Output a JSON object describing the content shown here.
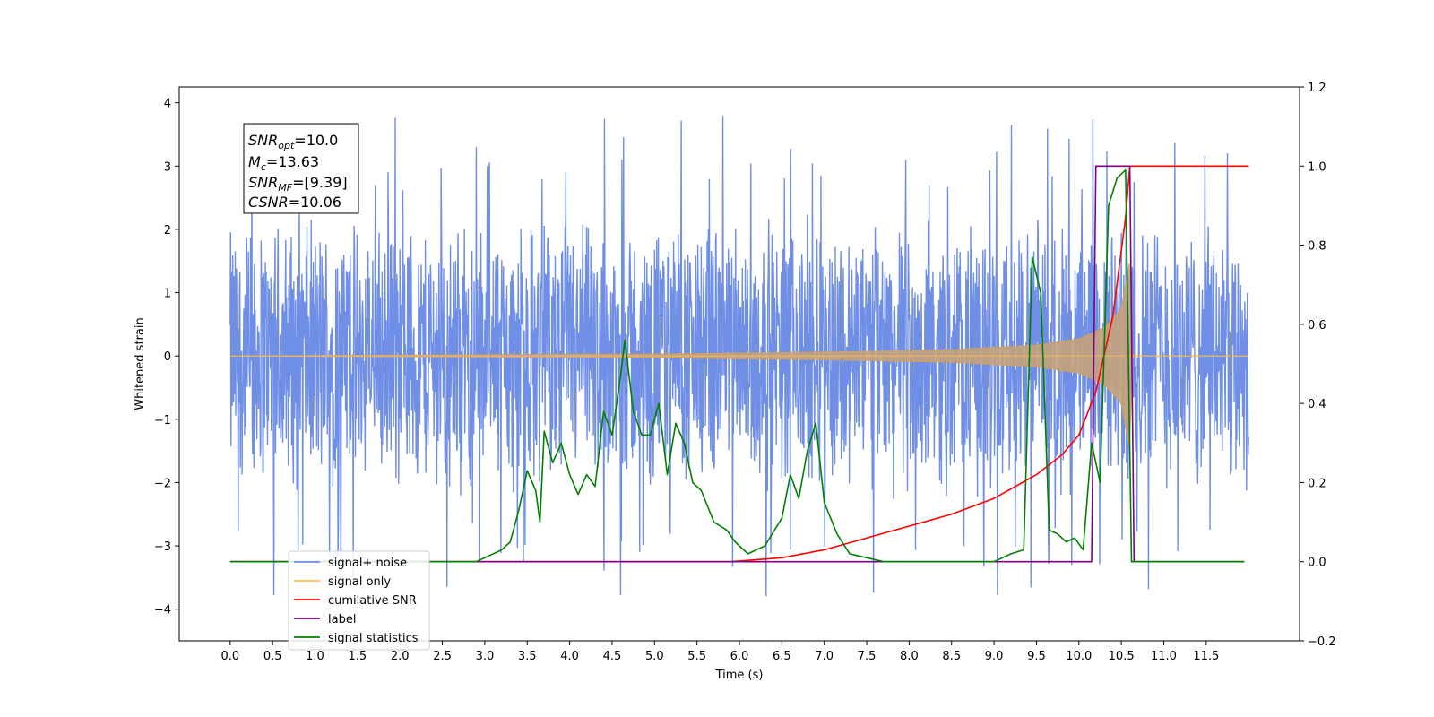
{
  "chart_data": {
    "type": "line",
    "xlabel": "Time (s)",
    "ylabel_left": "Whitened strain",
    "ylabel_right": "",
    "xlim": [
      -0.6,
      12.6
    ],
    "ylim_left": [
      -4.5,
      4.25
    ],
    "ylim_right": [
      -0.2,
      1.2
    ],
    "x_ticks": [
      0.0,
      0.5,
      1.0,
      1.5,
      2.0,
      2.5,
      3.0,
      3.5,
      4.0,
      4.5,
      5.0,
      5.5,
      6.0,
      6.5,
      7.0,
      7.5,
      8.0,
      8.5,
      9.0,
      9.5,
      10.0,
      10.5,
      11.0,
      11.5
    ],
    "x_tick_labels": [
      "0.0",
      "0.5",
      "1.0",
      "1.5",
      "2.0",
      "2.5",
      "3.0",
      "3.5",
      "4.0",
      "4.5",
      "5.0",
      "5.5",
      "6.0",
      "6.5",
      "7.0",
      "7.5",
      "8.0",
      "8.5",
      "9.0",
      "9.5",
      "10.0",
      "10.5",
      "11.0",
      "11.5"
    ],
    "y_left_ticks": [
      4,
      3,
      2,
      1,
      0,
      -1,
      -2,
      -3,
      -4
    ],
    "y_left_tick_labels": [
      "4",
      "3",
      "2",
      "1",
      "0",
      "−1",
      "−2",
      "−3",
      "−4"
    ],
    "y_right_ticks": [
      1.2,
      1.0,
      0.8,
      0.6,
      0.4,
      0.2,
      0.0,
      -0.2
    ],
    "y_right_tick_labels": [
      "1.2",
      "1.0",
      "0.8",
      "0.6",
      "0.4",
      "0.2",
      "0.0",
      "−0.2"
    ],
    "series": [
      {
        "name": "signal+ noise",
        "color": "#6f8ee6",
        "axis": "left",
        "style": "dense noisy trace, approx. uniform band between -2.3 and 2.3 with spikes to about 3.9 and -3.8",
        "x_range": [
          0.0,
          12.0
        ],
        "band": [
          -2.3,
          2.3
        ]
      },
      {
        "name": "signal only",
        "color": "#ffa500",
        "axis": "left",
        "style": "chirp with growing amplitude, zero after merger",
        "x_range": [
          0.0,
          12.0
        ],
        "envelope_points": [
          [
            0.0,
            0.0
          ],
          [
            5.0,
            0.03
          ],
          [
            7.0,
            0.06
          ],
          [
            8.5,
            0.1
          ],
          [
            9.5,
            0.17
          ],
          [
            10.0,
            0.27
          ],
          [
            10.3,
            0.45
          ],
          [
            10.5,
            0.75
          ],
          [
            10.6,
            1.5
          ],
          [
            10.63,
            0.0
          ],
          [
            12.0,
            0.0
          ]
        ]
      },
      {
        "name": "cumilative SNR",
        "color": "#ff0000",
        "axis": "right",
        "points": [
          [
            0.0,
            0.0
          ],
          [
            5.9,
            0.0
          ],
          [
            6.5,
            0.01
          ],
          [
            7.0,
            0.03
          ],
          [
            7.5,
            0.06
          ],
          [
            8.0,
            0.09
          ],
          [
            8.5,
            0.12
          ],
          [
            9.0,
            0.16
          ],
          [
            9.5,
            0.22
          ],
          [
            9.8,
            0.27
          ],
          [
            10.0,
            0.32
          ],
          [
            10.2,
            0.43
          ],
          [
            10.4,
            0.62
          ],
          [
            10.55,
            0.87
          ],
          [
            10.6,
            1.0
          ],
          [
            12.0,
            1.0
          ]
        ]
      },
      {
        "name": "label",
        "color": "#800080",
        "axis": "right",
        "points": [
          [
            0.0,
            0.0
          ],
          [
            10.15,
            0.0
          ],
          [
            10.2,
            1.0
          ],
          [
            10.6,
            1.0
          ],
          [
            10.65,
            0.0
          ],
          [
            11.95,
            0.0
          ]
        ]
      },
      {
        "name": "signal statistics",
        "color": "#008000",
        "axis": "right",
        "points": [
          [
            0.0,
            0.0
          ],
          [
            2.9,
            0.0
          ],
          [
            3.0,
            0.01
          ],
          [
            3.2,
            0.03
          ],
          [
            3.3,
            0.05
          ],
          [
            3.4,
            0.13
          ],
          [
            3.5,
            0.23
          ],
          [
            3.6,
            0.18
          ],
          [
            3.65,
            0.1
          ],
          [
            3.7,
            0.33
          ],
          [
            3.8,
            0.25
          ],
          [
            3.9,
            0.3
          ],
          [
            4.0,
            0.22
          ],
          [
            4.1,
            0.17
          ],
          [
            4.2,
            0.22
          ],
          [
            4.3,
            0.19
          ],
          [
            4.4,
            0.38
          ],
          [
            4.5,
            0.32
          ],
          [
            4.6,
            0.47
          ],
          [
            4.65,
            0.56
          ],
          [
            4.75,
            0.38
          ],
          [
            4.85,
            0.32
          ],
          [
            4.95,
            0.32
          ],
          [
            5.05,
            0.4
          ],
          [
            5.15,
            0.22
          ],
          [
            5.25,
            0.35
          ],
          [
            5.35,
            0.3
          ],
          [
            5.45,
            0.2
          ],
          [
            5.55,
            0.18
          ],
          [
            5.7,
            0.1
          ],
          [
            5.85,
            0.08
          ],
          [
            5.95,
            0.05
          ],
          [
            6.1,
            0.02
          ],
          [
            6.3,
            0.04
          ],
          [
            6.5,
            0.11
          ],
          [
            6.6,
            0.22
          ],
          [
            6.7,
            0.16
          ],
          [
            6.8,
            0.28
          ],
          [
            6.9,
            0.35
          ],
          [
            7.0,
            0.15
          ],
          [
            7.15,
            0.07
          ],
          [
            7.3,
            0.02
          ],
          [
            7.5,
            0.01
          ],
          [
            7.7,
            0.0
          ],
          [
            9.0,
            0.0
          ],
          [
            9.2,
            0.02
          ],
          [
            9.35,
            0.03
          ],
          [
            9.45,
            0.77
          ],
          [
            9.55,
            0.68
          ],
          [
            9.65,
            0.08
          ],
          [
            9.75,
            0.07
          ],
          [
            9.85,
            0.05
          ],
          [
            9.95,
            0.06
          ],
          [
            10.05,
            0.03
          ],
          [
            10.15,
            0.3
          ],
          [
            10.25,
            0.2
          ],
          [
            10.35,
            0.9
          ],
          [
            10.45,
            0.97
          ],
          [
            10.55,
            0.99
          ],
          [
            10.62,
            0.0
          ],
          [
            11.95,
            0.0
          ]
        ]
      }
    ],
    "legend": {
      "placement": "lower-left",
      "entries": [
        {
          "label": "signal+ noise",
          "color": "#6f8ee6"
        },
        {
          "label": "signal only",
          "color": "#ffbe4d"
        },
        {
          "label": "cumilative SNR",
          "color": "#ff0000"
        },
        {
          "label": "label",
          "color": "#800080"
        },
        {
          "label": "signal statistics",
          "color": "#008000"
        }
      ]
    },
    "annotation": {
      "placement": "upper-left",
      "snr_opt": "10.0",
      "mc": "13.63",
      "snr_mf": "[9.39]",
      "csnr": "10.06"
    }
  }
}
